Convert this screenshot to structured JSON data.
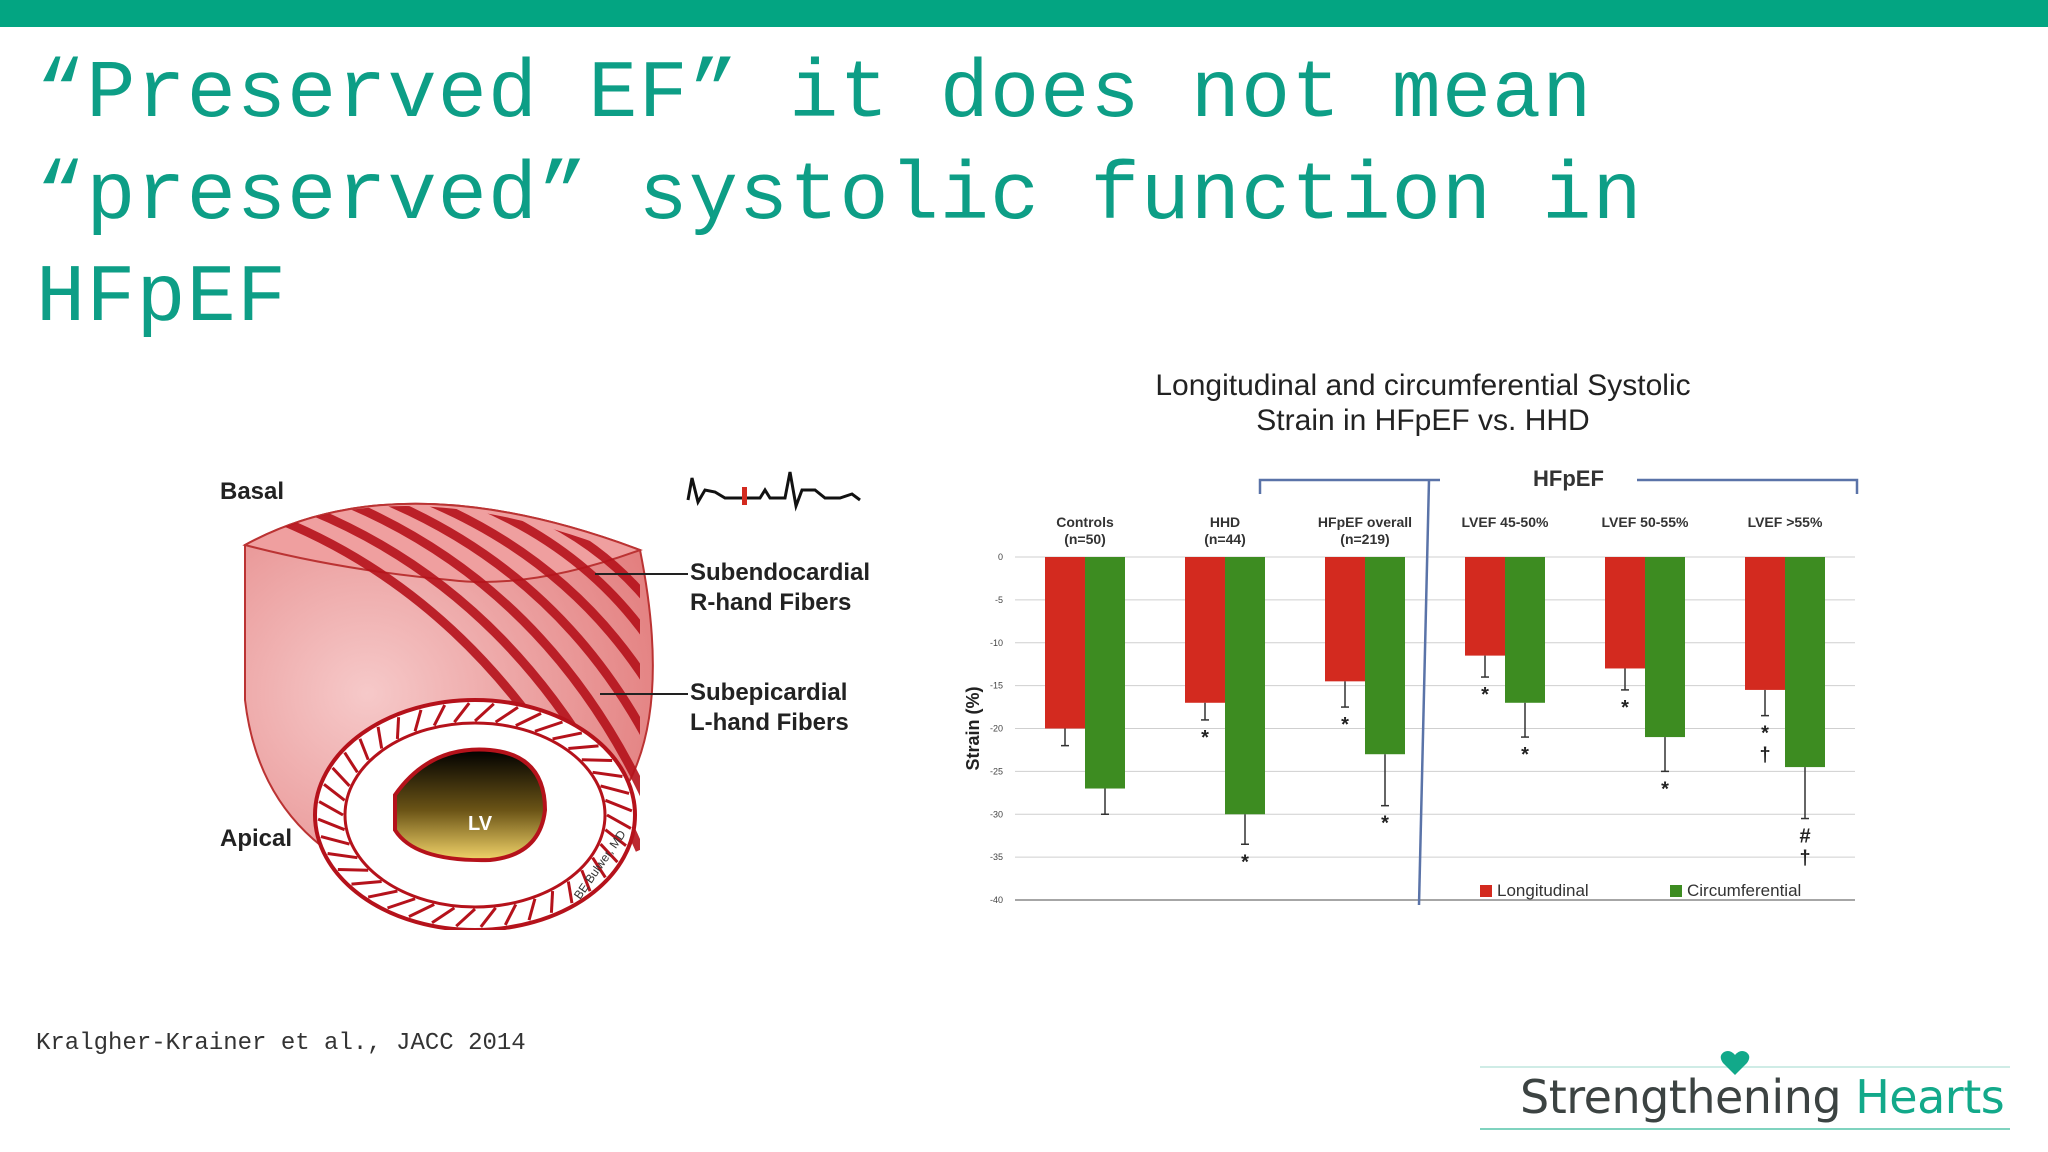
{
  "slide": {
    "title_lines": [
      "“Preserved EF” it does not mean",
      "“preserved” systolic function in",
      "HFpEF"
    ],
    "citation": "Kralgher-Krainer et al., JACC 2014"
  },
  "heart_diagram": {
    "basal_label": "Basal",
    "apical_label": "Apical",
    "subendo_line1": "Subendocardial",
    "subendo_line2": "R-hand Fibers",
    "subepi_line1": "Subepicardial",
    "subepi_line2": "L-hand Fibers",
    "lv_label": "LV",
    "signature": "BE Bulwer, MD"
  },
  "logo": {
    "word1": "Strengthening",
    "word2": "Hearts",
    "colors": {
      "word1": "#3c4342",
      "word2": "#12a98a"
    }
  },
  "chart_data": {
    "type": "bar",
    "title_line1": "Longitudinal and circumferential Systolic",
    "title_line2": "Strain in HFpEF vs. HHD",
    "group_bracket_label": "HFpEF",
    "ylabel": "Strain (%)",
    "ylim": [
      -40,
      0
    ],
    "yticks": [
      0,
      -5,
      -10,
      -15,
      -20,
      -25,
      -30,
      -35,
      -40
    ],
    "grid": true,
    "legend_position": "bottom-right",
    "categories": [
      {
        "line1": "Controls",
        "line2": "(n=50)"
      },
      {
        "line1": "HHD",
        "line2": "(n=44)"
      },
      {
        "line1": "HFpEF overall",
        "line2": "(n=219)"
      },
      {
        "line1": "LVEF 45-50%",
        "line2": ""
      },
      {
        "line1": "LVEF 50-55%",
        "line2": ""
      },
      {
        "line1": "LVEF >55%",
        "line2": ""
      }
    ],
    "series": [
      {
        "name": "Longitudinal",
        "color": "#d32a1f",
        "values": [
          -20,
          -17,
          -14.5,
          -11.5,
          -13,
          -15.5
        ],
        "errors": [
          2,
          2,
          3,
          2.5,
          2.5,
          3
        ],
        "annotations": [
          "",
          "*",
          "*",
          "*",
          "*",
          "*\n†"
        ]
      },
      {
        "name": "Circumferential",
        "color": "#3d8c21",
        "values": [
          -27,
          -30,
          -23,
          -17,
          -21,
          -24.5
        ],
        "errors": [
          3,
          3.5,
          6,
          4,
          4,
          6
        ],
        "annotations": [
          "",
          "*",
          "*",
          "*",
          "*",
          "#\n†"
        ]
      }
    ]
  }
}
